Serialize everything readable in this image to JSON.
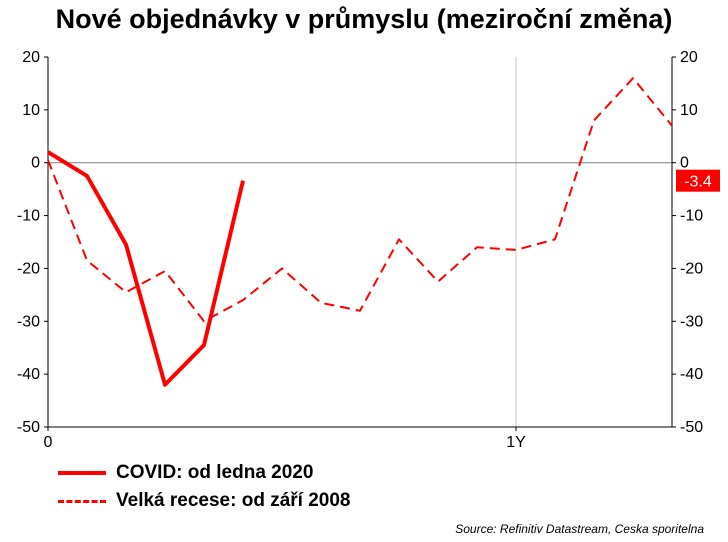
{
  "title": "Nové objednávky v průmyslu (meziroční změna)",
  "source": "Source: Refinitiv Datastream, Ceska sporitelna",
  "colors": {
    "series": "#ff0000",
    "axis": "#000000",
    "zero_line": "#808080"
  },
  "chart_data": {
    "type": "line",
    "ylim": [
      -50,
      20
    ],
    "yticks": [
      "20",
      "10",
      "0",
      "-10",
      "-20",
      "-30",
      "-40",
      "-50"
    ],
    "xlim": [
      0,
      16
    ],
    "xticks": [
      {
        "x": 0,
        "label": "0"
      },
      {
        "x": 12,
        "label": "1Y"
      }
    ],
    "grid": "vertical only",
    "last_value_label": "-3.4",
    "series": [
      {
        "name": "COVID: od ledna 2020",
        "style": "solid",
        "x": [
          0,
          1,
          2,
          3,
          4,
          5
        ],
        "values": [
          2.0,
          -2.5,
          -15.5,
          -42.0,
          -34.5,
          -3.4
        ]
      },
      {
        "name": "Velká recese: od září 2008",
        "style": "dashed",
        "x": [
          0,
          1,
          2,
          3,
          4,
          5,
          6,
          7,
          8,
          9,
          10,
          11,
          12,
          13,
          14,
          15,
          16
        ],
        "values": [
          0.5,
          -18.5,
          -24.5,
          -20.5,
          -30.0,
          -26.0,
          -20.0,
          -26.5,
          -28.0,
          -14.5,
          -22.5,
          -16.0,
          -16.5,
          -14.5,
          8.0,
          16.0,
          7.0
        ]
      }
    ],
    "legend_position": "bottom"
  }
}
